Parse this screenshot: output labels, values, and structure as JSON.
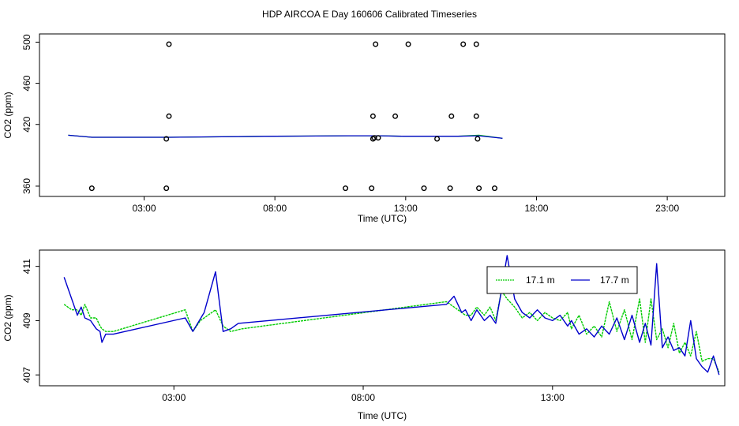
{
  "page": {
    "title": "HDP AIRCOA E  Day 160606  Calibrated Timeseries"
  },
  "chart_data": [
    {
      "type": "scatter",
      "xlabel": "Time (UTC)",
      "ylabel": "CO2 (ppm)",
      "xlim": [
        -1.0,
        25.2
      ],
      "ylim": [
        350,
        508
      ],
      "xticks": [
        3,
        8,
        13,
        18,
        23
      ],
      "xticklabels": [
        "03:00",
        "08:00",
        "13:00",
        "18:00",
        "23:00"
      ],
      "yticks": [
        360,
        420,
        460,
        500
      ],
      "yticklabels": [
        "360",
        "420",
        "460",
        "500"
      ],
      "points_x": [
        1.0,
        3.85,
        3.85,
        3.95,
        3.95,
        10.7,
        11.7,
        11.75,
        11.75,
        11.8,
        11.85,
        11.95,
        12.6,
        13.1,
        13.7,
        14.2,
        14.7,
        14.75,
        15.2,
        15.7,
        15.7,
        15.75,
        15.8,
        16.4
      ],
      "points_y": [
        358,
        358,
        406,
        428,
        498,
        358,
        358,
        406,
        428,
        407,
        498,
        407,
        428,
        498,
        358,
        406,
        358,
        428,
        498,
        498,
        428,
        406,
        358,
        358
      ],
      "series": [
        {
          "color": "#00cc00",
          "x": [
            0.1,
            1.0,
            4.0,
            8.0,
            10.8,
            12.0,
            12.9,
            13.5,
            15.0,
            15.8,
            16.7
          ],
          "y": [
            409.5,
            407.5,
            407.5,
            408.5,
            409,
            409,
            408.5,
            408.5,
            408.5,
            409.5,
            406.5
          ]
        },
        {
          "color": "#0000cc",
          "x": [
            0.1,
            1.0,
            4.0,
            8.0,
            10.8,
            12.0,
            12.9,
            13.5,
            15.0,
            15.8,
            16.7
          ],
          "y": [
            409.5,
            407.5,
            407.5,
            408.5,
            409,
            409,
            408.5,
            408.5,
            408.5,
            409,
            406.5
          ]
        }
      ]
    },
    {
      "type": "line",
      "xlabel": "Time (UTC)",
      "ylabel": "CO2 (ppm)",
      "xlim": [
        -0.55,
        17.55
      ],
      "ylim": [
        406.6,
        411.6
      ],
      "xticks": [
        3,
        8,
        13
      ],
      "xticklabels": [
        "03:00",
        "08:00",
        "13:00"
      ],
      "yticks": [
        407,
        409,
        411
      ],
      "yticklabels": [
        "407",
        "409",
        "411"
      ],
      "legend_position": "top-right",
      "series": [
        {
          "name": "17.1 m",
          "color": "#00cc00",
          "x": [
            0.1,
            0.3,
            0.45,
            0.55,
            0.65,
            0.8,
            0.95,
            1.05,
            1.1,
            1.2,
            1.4,
            3.3,
            3.5,
            3.7,
            3.9,
            4.1,
            4.3,
            4.5,
            4.8,
            10.2,
            10.4,
            10.6,
            10.7,
            10.85,
            11.0,
            11.2,
            11.35,
            11.5,
            11.65,
            11.8,
            12.0,
            12.2,
            12.4,
            12.6,
            12.8,
            13.0,
            13.2,
            13.4,
            13.5,
            13.7,
            13.9,
            14.1,
            14.3,
            14.5,
            14.7,
            14.9,
            15.1,
            15.3,
            15.45,
            15.6,
            15.75,
            15.9,
            16.05,
            16.2,
            16.35,
            16.5,
            16.65,
            16.8,
            16.95,
            17.1,
            17.25,
            17.4
          ],
          "y": [
            409.6,
            409.4,
            409.4,
            409.2,
            409.6,
            409.1,
            409.1,
            408.8,
            408.7,
            408.6,
            408.6,
            409.4,
            408.6,
            409.0,
            409.2,
            409.4,
            408.8,
            408.6,
            408.7,
            409.7,
            409.5,
            409.3,
            409.2,
            409.2,
            409.5,
            409.2,
            409.5,
            409.0,
            410.1,
            409.8,
            409.5,
            409.1,
            409.3,
            409.0,
            409.3,
            409.1,
            409.0,
            409.3,
            408.7,
            409.2,
            408.5,
            408.8,
            408.4,
            409.7,
            408.6,
            409.4,
            408.3,
            409.8,
            408.2,
            409.8,
            408.3,
            408.7,
            408.0,
            408.9,
            407.8,
            408.2,
            407.7,
            408.6,
            407.5,
            407.6,
            407.6,
            407.1
          ]
        },
        {
          "name": "17.7 m",
          "color": "#0000cc",
          "x": [
            0.1,
            0.3,
            0.45,
            0.55,
            0.65,
            0.8,
            0.95,
            1.05,
            1.1,
            1.2,
            1.4,
            3.3,
            3.5,
            3.8,
            4.1,
            4.3,
            4.5,
            4.7,
            10.2,
            10.4,
            10.6,
            10.7,
            10.85,
            11.0,
            11.2,
            11.35,
            11.5,
            11.65,
            11.8,
            12.0,
            12.2,
            12.4,
            12.6,
            12.8,
            13.0,
            13.2,
            13.4,
            13.5,
            13.7,
            13.9,
            14.1,
            14.3,
            14.5,
            14.7,
            14.9,
            15.1,
            15.3,
            15.45,
            15.6,
            15.75,
            15.9,
            16.05,
            16.2,
            16.35,
            16.5,
            16.65,
            16.8,
            16.95,
            17.1,
            17.25,
            17.4
          ],
          "y": [
            410.6,
            409.8,
            409.2,
            409.5,
            409.1,
            409.0,
            408.7,
            408.6,
            408.2,
            408.5,
            408.5,
            409.1,
            408.6,
            409.3,
            410.8,
            408.6,
            408.7,
            408.9,
            409.6,
            409.9,
            409.3,
            409.4,
            409.0,
            409.4,
            409.0,
            409.2,
            408.9,
            410.1,
            411.4,
            409.8,
            409.3,
            409.1,
            409.4,
            409.1,
            409.0,
            409.2,
            408.8,
            409.0,
            408.5,
            408.7,
            408.4,
            408.8,
            408.5,
            409.1,
            408.3,
            409.2,
            408.2,
            408.9,
            408.1,
            411.1,
            408.0,
            408.4,
            407.9,
            408.0,
            407.7,
            409.0,
            407.6,
            407.3,
            407.1,
            407.7,
            407.0
          ]
        }
      ]
    }
  ]
}
